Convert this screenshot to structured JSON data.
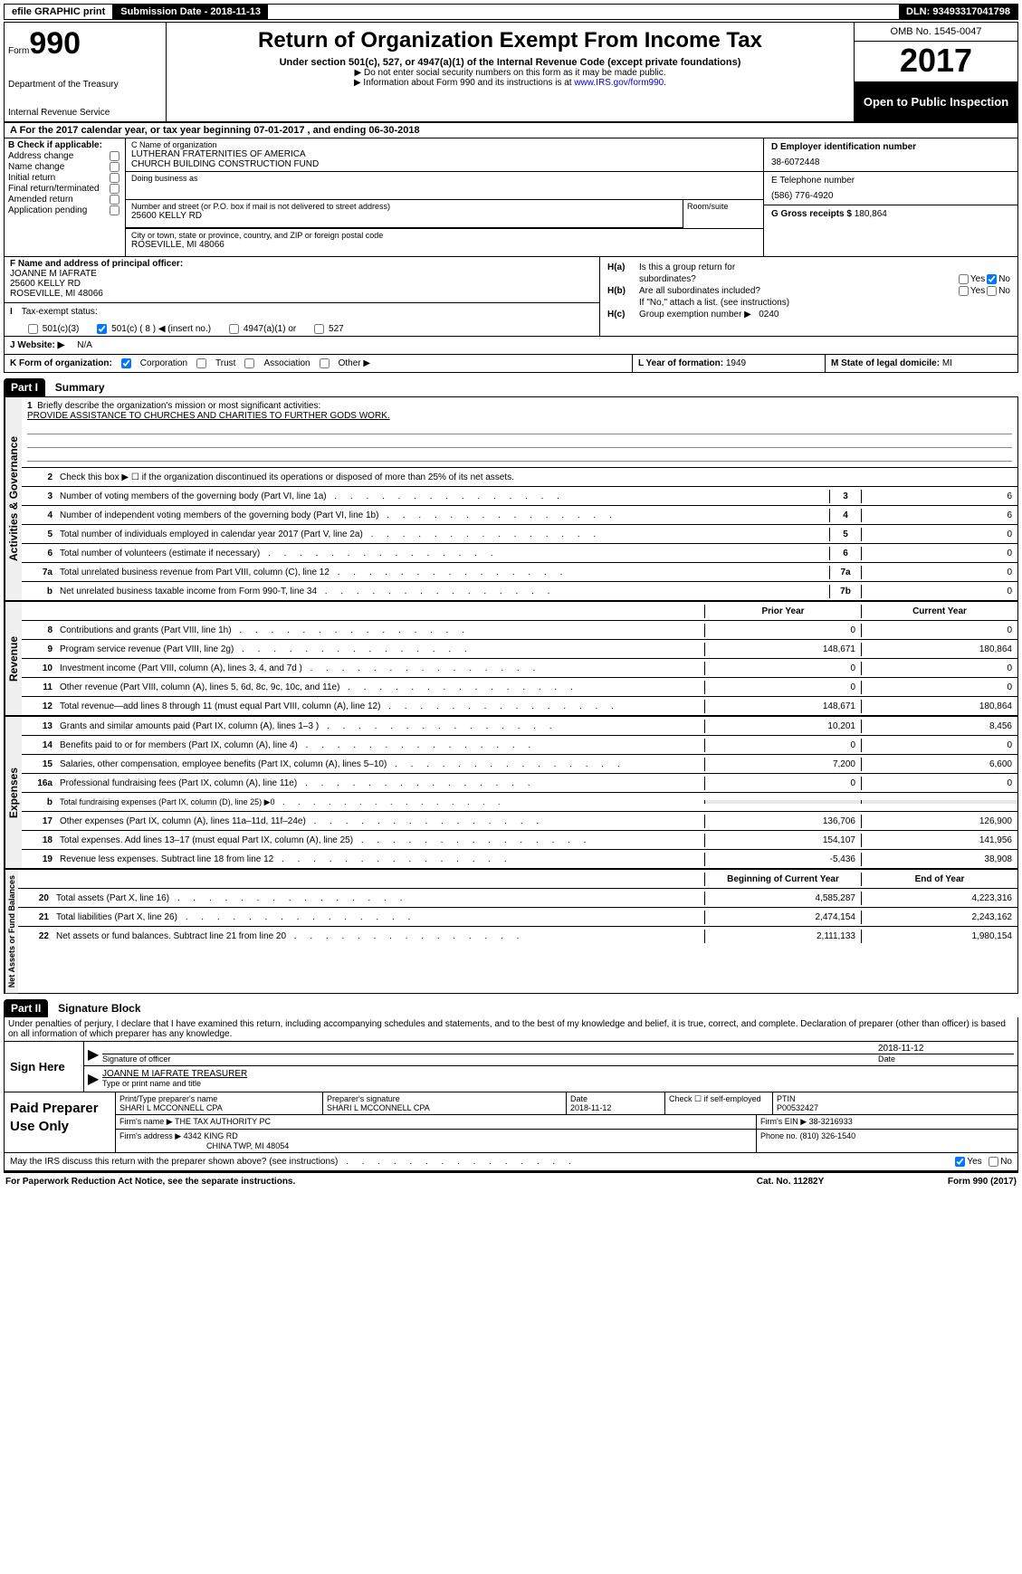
{
  "topbar": {
    "efile": "efile GRAPHIC print",
    "submission": "Submission Date - 2018-11-13",
    "dln": "DLN: 93493317041798"
  },
  "header": {
    "form_label": "Form",
    "form_num": "990",
    "dept1": "Department of the Treasury",
    "dept2": "Internal Revenue Service",
    "title": "Return of Organization Exempt From Income Tax",
    "sub": "Under section 501(c), 527, or 4947(a)(1) of the Internal Revenue Code (except private foundations)",
    "note1": "▶ Do not enter social security numbers on this form as it may be made public.",
    "note2_a": "▶ Information about Form 990 and its instructions is at ",
    "note2_link": "www.IRS.gov/form990",
    "omb": "OMB No. 1545-0047",
    "year": "2017",
    "open": "Open to Public Inspection"
  },
  "row_a": "A   For the 2017 calendar year, or tax year beginning 07-01-2017        , and ending 06-30-2018",
  "col_b": {
    "hdr": "B Check if applicable:",
    "items": [
      "Address change",
      "Name change",
      "Initial return",
      "Final return/terminated",
      "Amended return",
      "Application pending"
    ]
  },
  "col_c": {
    "name_lbl": "C Name of organization",
    "name1": "LUTHERAN FRATERNITIES OF AMERICA",
    "name2": "CHURCH BUILDING CONSTRUCTION FUND",
    "dba_lbl": "Doing business as",
    "addr_lbl": "Number and street (or P.O. box if mail is not delivered to street address)",
    "addr": "25600 KELLY RD",
    "room_lbl": "Room/suite",
    "city_lbl": "City or town, state or province, country, and ZIP or foreign postal code",
    "city": "ROSEVILLE, MI   48066"
  },
  "col_d": {
    "ein_lbl": "D Employer identification number",
    "ein": "38-6072448",
    "tel_lbl": "E Telephone number",
    "tel": "(586) 776-4920",
    "gross_lbl": "G Gross receipts $",
    "gross": "180,864"
  },
  "col_f": {
    "lbl": "F Name and address of principal officer:",
    "name": "JOANNE M IAFRATE",
    "addr1": "25600 KELLY RD",
    "addr2": "ROSEVILLE, MI   48066"
  },
  "col_h": {
    "ha": "Is this a group return for",
    "ha2": "subordinates?",
    "hb": "Are all subordinates included?",
    "hb2": "If \"No,\" attach a list. (see instructions)",
    "hc": "Group exemption number ▶",
    "hc_val": "0240",
    "yes": "Yes",
    "no": "No"
  },
  "tax_row": {
    "lbl": "Tax-exempt status:",
    "o1": "501(c)(3)",
    "o2": "501(c) ( 8 ) ◀ (insert no.)",
    "o3": "4947(a)(1) or",
    "o4": "527"
  },
  "j_row": {
    "lbl": "J   Website: ▶",
    "val": "N/A"
  },
  "k_row": {
    "lbl": "K Form of organization:",
    "o1": "Corporation",
    "o2": "Trust",
    "o3": "Association",
    "o4": "Other ▶",
    "l_lbl": "L Year of formation:",
    "l_val": "1949",
    "m_lbl": "M State of legal domicile:",
    "m_val": "MI"
  },
  "part1": {
    "hdr": "Part I",
    "title": "Summary",
    "vlab1": "Activities & Governance",
    "vlab2": "Revenue",
    "vlab3": "Expenses",
    "vlab4": "Net Assets or Fund Balances",
    "line1_lbl": "Briefly describe the organization's mission or most significant activities:",
    "line1_val": "PROVIDE ASSISTANCE TO CHURCHES AND CHARITIES TO FURTHER GODS WORK.",
    "line2": "Check this box ▶ ☐  if the organization discontinued its operations or disposed of more than 25% of its net assets.",
    "prior_hdr": "Prior Year",
    "curr_hdr": "Current Year",
    "begin_hdr": "Beginning of Current Year",
    "end_hdr": "End of Year",
    "rows_ag": [
      {
        "n": "3",
        "t": "Number of voting members of the governing body (Part VI, line 1a)",
        "c": "3",
        "v": "6"
      },
      {
        "n": "4",
        "t": "Number of independent voting members of the governing body (Part VI, line 1b)",
        "c": "4",
        "v": "6"
      },
      {
        "n": "5",
        "t": "Total number of individuals employed in calendar year 2017 (Part V, line 2a)",
        "c": "5",
        "v": "0"
      },
      {
        "n": "6",
        "t": "Total number of volunteers (estimate if necessary)",
        "c": "6",
        "v": "0"
      },
      {
        "n": "7a",
        "t": "Total unrelated business revenue from Part VIII, column (C), line 12",
        "c": "7a",
        "v": "0"
      },
      {
        "n": "b",
        "t": "Net unrelated business taxable income from Form 990-T, line 34",
        "c": "7b",
        "v": "0"
      }
    ],
    "rows_rev": [
      {
        "n": "8",
        "t": "Contributions and grants (Part VIII, line 1h)",
        "p": "0",
        "v": "0"
      },
      {
        "n": "9",
        "t": "Program service revenue (Part VIII, line 2g)",
        "p": "148,671",
        "v": "180,864"
      },
      {
        "n": "10",
        "t": "Investment income (Part VIII, column (A), lines 3, 4, and 7d )",
        "p": "0",
        "v": "0"
      },
      {
        "n": "11",
        "t": "Other revenue (Part VIII, column (A), lines 5, 6d, 8c, 9c, 10c, and 11e)",
        "p": "0",
        "v": "0"
      },
      {
        "n": "12",
        "t": "Total revenue—add lines 8 through 11 (must equal Part VIII, column (A), line 12)",
        "p": "148,671",
        "v": "180,864"
      }
    ],
    "rows_exp": [
      {
        "n": "13",
        "t": "Grants and similar amounts paid (Part IX, column (A), lines 1–3 )",
        "p": "10,201",
        "v": "8,456"
      },
      {
        "n": "14",
        "t": "Benefits paid to or for members (Part IX, column (A), line 4)",
        "p": "0",
        "v": "0"
      },
      {
        "n": "15",
        "t": "Salaries, other compensation, employee benefits (Part IX, column (A), lines 5–10)",
        "p": "7,200",
        "v": "6,600"
      },
      {
        "n": "16a",
        "t": "Professional fundraising fees (Part IX, column (A), line 11e)",
        "p": "0",
        "v": "0"
      },
      {
        "n": "b",
        "t": "Total fundraising expenses (Part IX, column (D), line 25) ▶0",
        "p": "",
        "v": "",
        "shade": true,
        "small": true
      },
      {
        "n": "17",
        "t": "Other expenses (Part IX, column (A), lines 11a–11d, 11f–24e)",
        "p": "136,706",
        "v": "126,900"
      },
      {
        "n": "18",
        "t": "Total expenses. Add lines 13–17 (must equal Part IX, column (A), line 25)",
        "p": "154,107",
        "v": "141,956"
      },
      {
        "n": "19",
        "t": "Revenue less expenses. Subtract line 18 from line 12",
        "p": "-5,436",
        "v": "38,908"
      }
    ],
    "rows_na": [
      {
        "n": "20",
        "t": "Total assets (Part X, line 16)",
        "p": "4,585,287",
        "v": "4,223,316"
      },
      {
        "n": "21",
        "t": "Total liabilities (Part X, line 26)",
        "p": "2,474,154",
        "v": "2,243,162"
      },
      {
        "n": "22",
        "t": "Net assets or fund balances. Subtract line 21 from line 20",
        "p": "2,111,133",
        "v": "1,980,154"
      }
    ]
  },
  "part2": {
    "hdr": "Part II",
    "title": "Signature Block",
    "decl": "Under penalties of perjury, I declare that I have examined this return, including accompanying schedules and statements, and to the best of my knowledge and belief, it is true, correct, and complete. Declaration of preparer (other than officer) is based on all information of which preparer has any knowledge.",
    "sign_here": "Sign Here",
    "sig_of": "Signature of officer",
    "sig_date": "2018-11-12",
    "date_lbl": "Date",
    "typed": "JOANNE M IAFRATE  TREASURER",
    "typed_lbl": "Type or print name and title",
    "paid": "Paid Preparer Use Only",
    "prep_name_lbl": "Print/Type preparer's name",
    "prep_name": "SHARI L MCCONNELL CPA",
    "prep_sig_lbl": "Preparer's signature",
    "prep_sig": "SHARI L MCCONNELL CPA",
    "prep_date_lbl": "Date",
    "prep_date": "2018-11-12",
    "chk_lbl": "Check ☐ if self-employed",
    "ptin_lbl": "PTIN",
    "ptin": "P00532427",
    "firm_name_lbl": "Firm's name      ▶",
    "firm_name": "THE TAX AUTHORITY PC",
    "firm_ein_lbl": "Firm's EIN ▶",
    "firm_ein": "38-3216933",
    "firm_addr_lbl": "Firm's address ▶",
    "firm_addr1": "4342 KING RD",
    "firm_addr2": "CHINA TWP, MI   48054",
    "phone_lbl": "Phone no.",
    "phone": "(810) 326-1540",
    "discuss": "May the IRS discuss this return with the preparer shown above? (see instructions)",
    "yes": "Yes",
    "no": "No"
  },
  "footer": {
    "left": "For Paperwork Reduction Act Notice, see the separate instructions.",
    "mid": "Cat. No. 11282Y",
    "right": "Form 990 (2017)"
  }
}
